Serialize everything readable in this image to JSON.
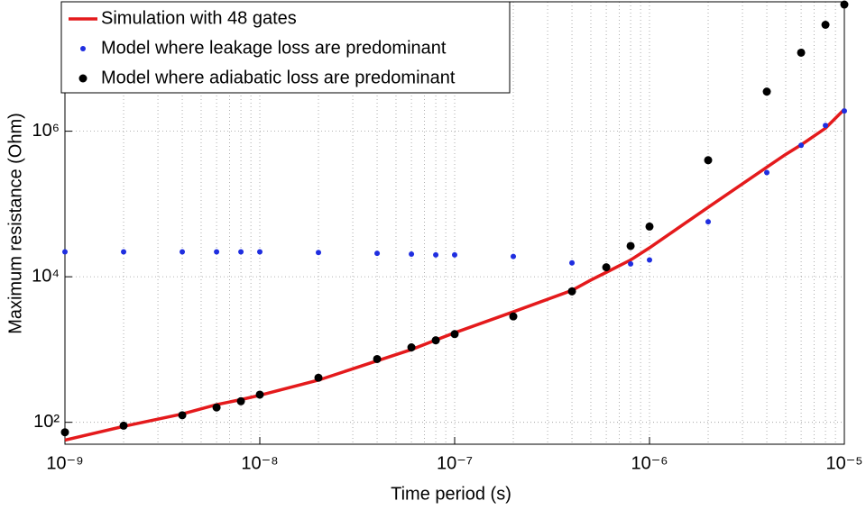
{
  "chart_data": {
    "type": "line",
    "xlabel": "Time period (s)",
    "ylabel": "Maximum resistance (Ohm)",
    "xscale": "log",
    "yscale": "log",
    "grid": true,
    "minor_grid": true,
    "legend": "upper left",
    "xlim": [
      1e-09,
      1e-05
    ],
    "ylim": [
      50,
      60000000
    ],
    "xticks": [
      {
        "value": 1e-09,
        "label": "10⁻⁹"
      },
      {
        "value": 1e-08,
        "label": "10⁻⁸"
      },
      {
        "value": 1e-07,
        "label": "10⁻⁷"
      },
      {
        "value": 1e-06,
        "label": "10⁻⁶"
      },
      {
        "value": 1e-05,
        "label": "10⁻⁵"
      }
    ],
    "yticks": [
      {
        "value": 100,
        "label": "10²"
      },
      {
        "value": 10000,
        "label": "10⁴"
      },
      {
        "value": 1000000,
        "label": "10⁶"
      }
    ],
    "series": [
      {
        "name": "Simulation with 48 gates",
        "color": "#e41a1c",
        "style": "line",
        "x": [
          1e-09,
          2e-09,
          4e-09,
          6e-09,
          8e-09,
          1e-08,
          2e-08,
          4e-08,
          6e-08,
          8e-08,
          1e-07,
          2e-07,
          4e-07,
          5e-07,
          6e-07,
          8e-07,
          1e-06,
          2e-06,
          4e-06,
          5e-06,
          6e-06,
          8e-06,
          1e-05
        ],
        "values": [
          57,
          88,
          130,
          175,
          205,
          235,
          380,
          700,
          1000,
          1350,
          1700,
          3300,
          6500,
          9000,
          11500,
          17000,
          25000,
          90000,
          320000,
          480000,
          650000,
          1100000,
          2000000
        ]
      },
      {
        "name": "Model where leakage loss are predominant",
        "color": "#1f2ee0",
        "style": "markers",
        "size": 3,
        "x": [
          1e-09,
          2e-09,
          4e-09,
          6e-09,
          8e-09,
          1e-08,
          2e-08,
          4e-08,
          6e-08,
          8e-08,
          1e-07,
          2e-07,
          4e-07,
          6e-07,
          8e-07,
          1e-06,
          2e-06,
          4e-06,
          6e-06,
          8e-06,
          1e-05
        ],
        "values": [
          22000,
          22000,
          22000,
          22000,
          22000,
          22000,
          21500,
          21000,
          20500,
          20000,
          20000,
          19000,
          15500,
          14000,
          15000,
          17000,
          57000,
          270000,
          640000,
          1200000,
          1900000
        ]
      },
      {
        "name": "Model where adiabatic loss are predominant",
        "color": "#000000",
        "style": "markers",
        "size": 4.5,
        "x": [
          1e-09,
          2e-09,
          4e-09,
          6e-09,
          8e-09,
          1e-08,
          2e-08,
          4e-08,
          6e-08,
          8e-08,
          1e-07,
          2e-07,
          4e-07,
          6e-07,
          8e-07,
          1e-06,
          2e-06,
          4e-06,
          6e-06,
          8e-06,
          1e-05
        ],
        "values": [
          73,
          90,
          125,
          160,
          195,
          240,
          410,
          740,
          1070,
          1340,
          1630,
          2850,
          6300,
          13500,
          26500,
          49000,
          400000,
          3500000,
          12000000,
          29000000,
          55000000
        ]
      }
    ]
  }
}
